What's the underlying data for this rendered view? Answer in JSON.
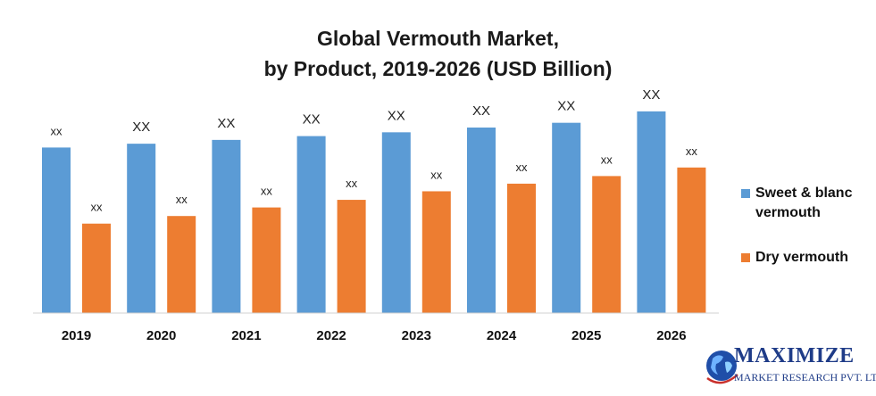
{
  "chart_data": {
    "type": "bar",
    "title_line1": "Global Vermouth Market,",
    "title_line2": "by Product, 2019-2026 (USD Billion)",
    "categories": [
      "2019",
      "2020",
      "2021",
      "2022",
      "2023",
      "2024",
      "2025",
      "2026"
    ],
    "series": [
      {
        "name": "Sweet & blanc vermouth",
        "color": "#5b9bd5",
        "values": [
          17.4,
          17.8,
          18.2,
          18.6,
          19.0,
          19.5,
          20.0,
          21.2
        ],
        "data_labels": [
          "xx",
          "XX",
          "XX",
          "XX",
          "XX",
          "XX",
          "XX",
          "XX"
        ]
      },
      {
        "name": "Dry vermouth",
        "color": "#ed7d31",
        "values": [
          9.4,
          10.2,
          11.1,
          11.9,
          12.8,
          13.6,
          14.4,
          15.3
        ],
        "data_labels": [
          "xx",
          "xx",
          "xx",
          "xx",
          "xx",
          "xx",
          "xx",
          "xx"
        ]
      }
    ],
    "legend_lines": [
      [
        "Sweet & blanc",
        "vermouth"
      ],
      [
        "Dry vermouth"
      ]
    ],
    "ylim": [
      0,
      24
    ],
    "grid": false,
    "legend_position": "right"
  },
  "logo": {
    "name": "MAXIMIZE",
    "subtitle": "MARKET RESEARCH PVT. LTD."
  }
}
